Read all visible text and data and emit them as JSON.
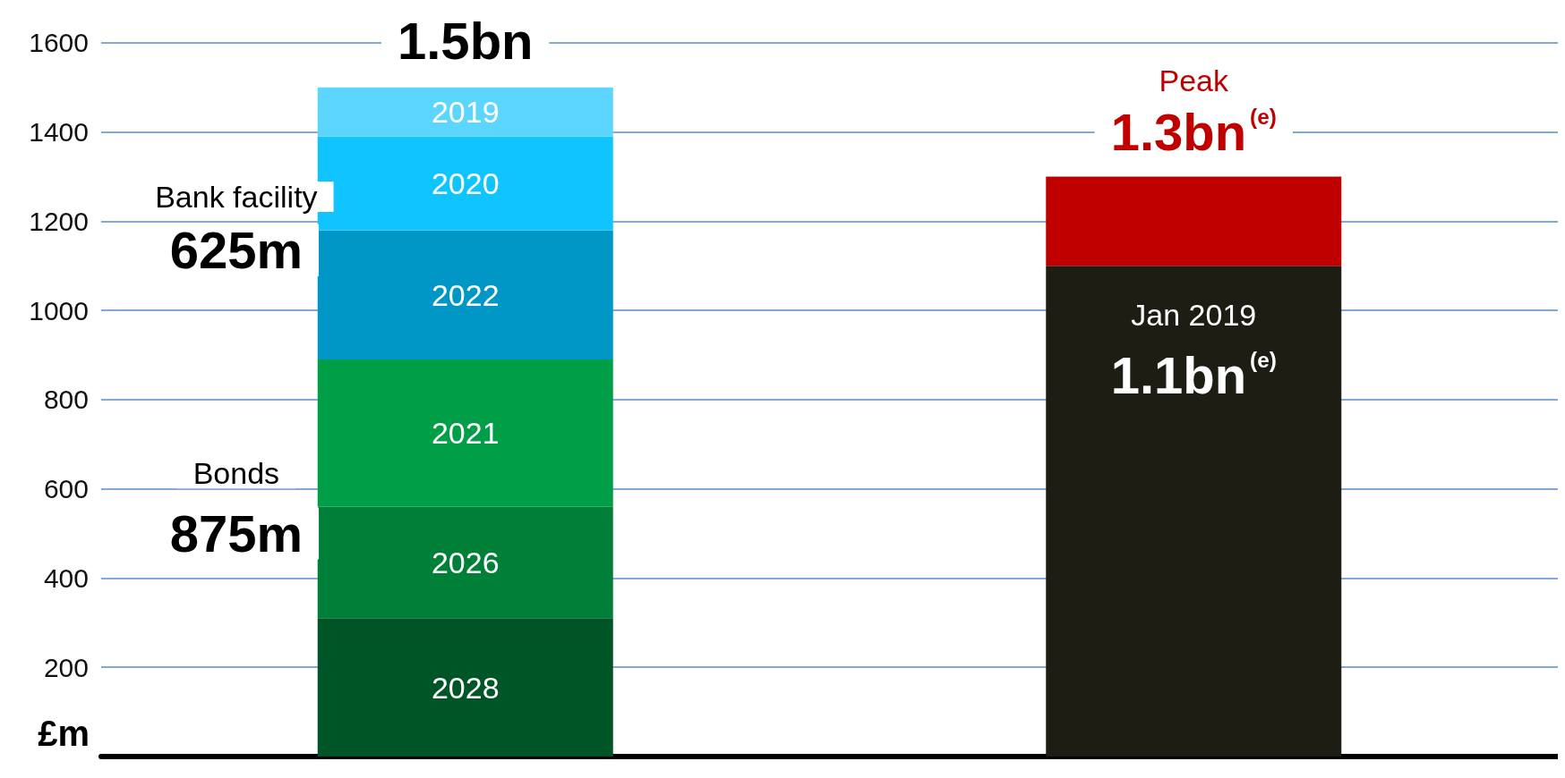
{
  "chart_data": {
    "type": "bar",
    "stacked": true,
    "categories": [
      null,
      null
    ],
    "series": [
      {
        "name": "2028",
        "color": "#005527",
        "values": [
          310,
          null
        ]
      },
      {
        "name": "2026",
        "color": "#007f38",
        "values": [
          250,
          null
        ]
      },
      {
        "name": "2021",
        "color": "#009e47",
        "values": [
          330,
          null
        ]
      },
      {
        "name": "2022",
        "color": "#0096c6",
        "values": [
          290,
          null
        ]
      },
      {
        "name": "2020",
        "color": "#0fc4ff",
        "values": [
          210,
          null
        ]
      },
      {
        "name": "2019",
        "color": "#5dd6ff",
        "values": [
          110,
          null
        ]
      },
      {
        "color": "#1e1d14",
        "values": [
          null,
          1100
        ]
      },
      {
        "color": "#c00000",
        "values": [
          null,
          200
        ]
      }
    ],
    "ylabel": "£m",
    "ylim": [
      0,
      1680
    ],
    "yticks": [
      200,
      400,
      600,
      800,
      1000,
      1200,
      1400,
      1600
    ],
    "grid": "y",
    "annotations": [
      "1.5bn",
      "Bank facility",
      "625m",
      "Bonds",
      "875m",
      "Peak",
      "1.3bn$^{(e)}$",
      "Jan 2019",
      "1.1bn$^{(e)}$"
    ]
  }
}
